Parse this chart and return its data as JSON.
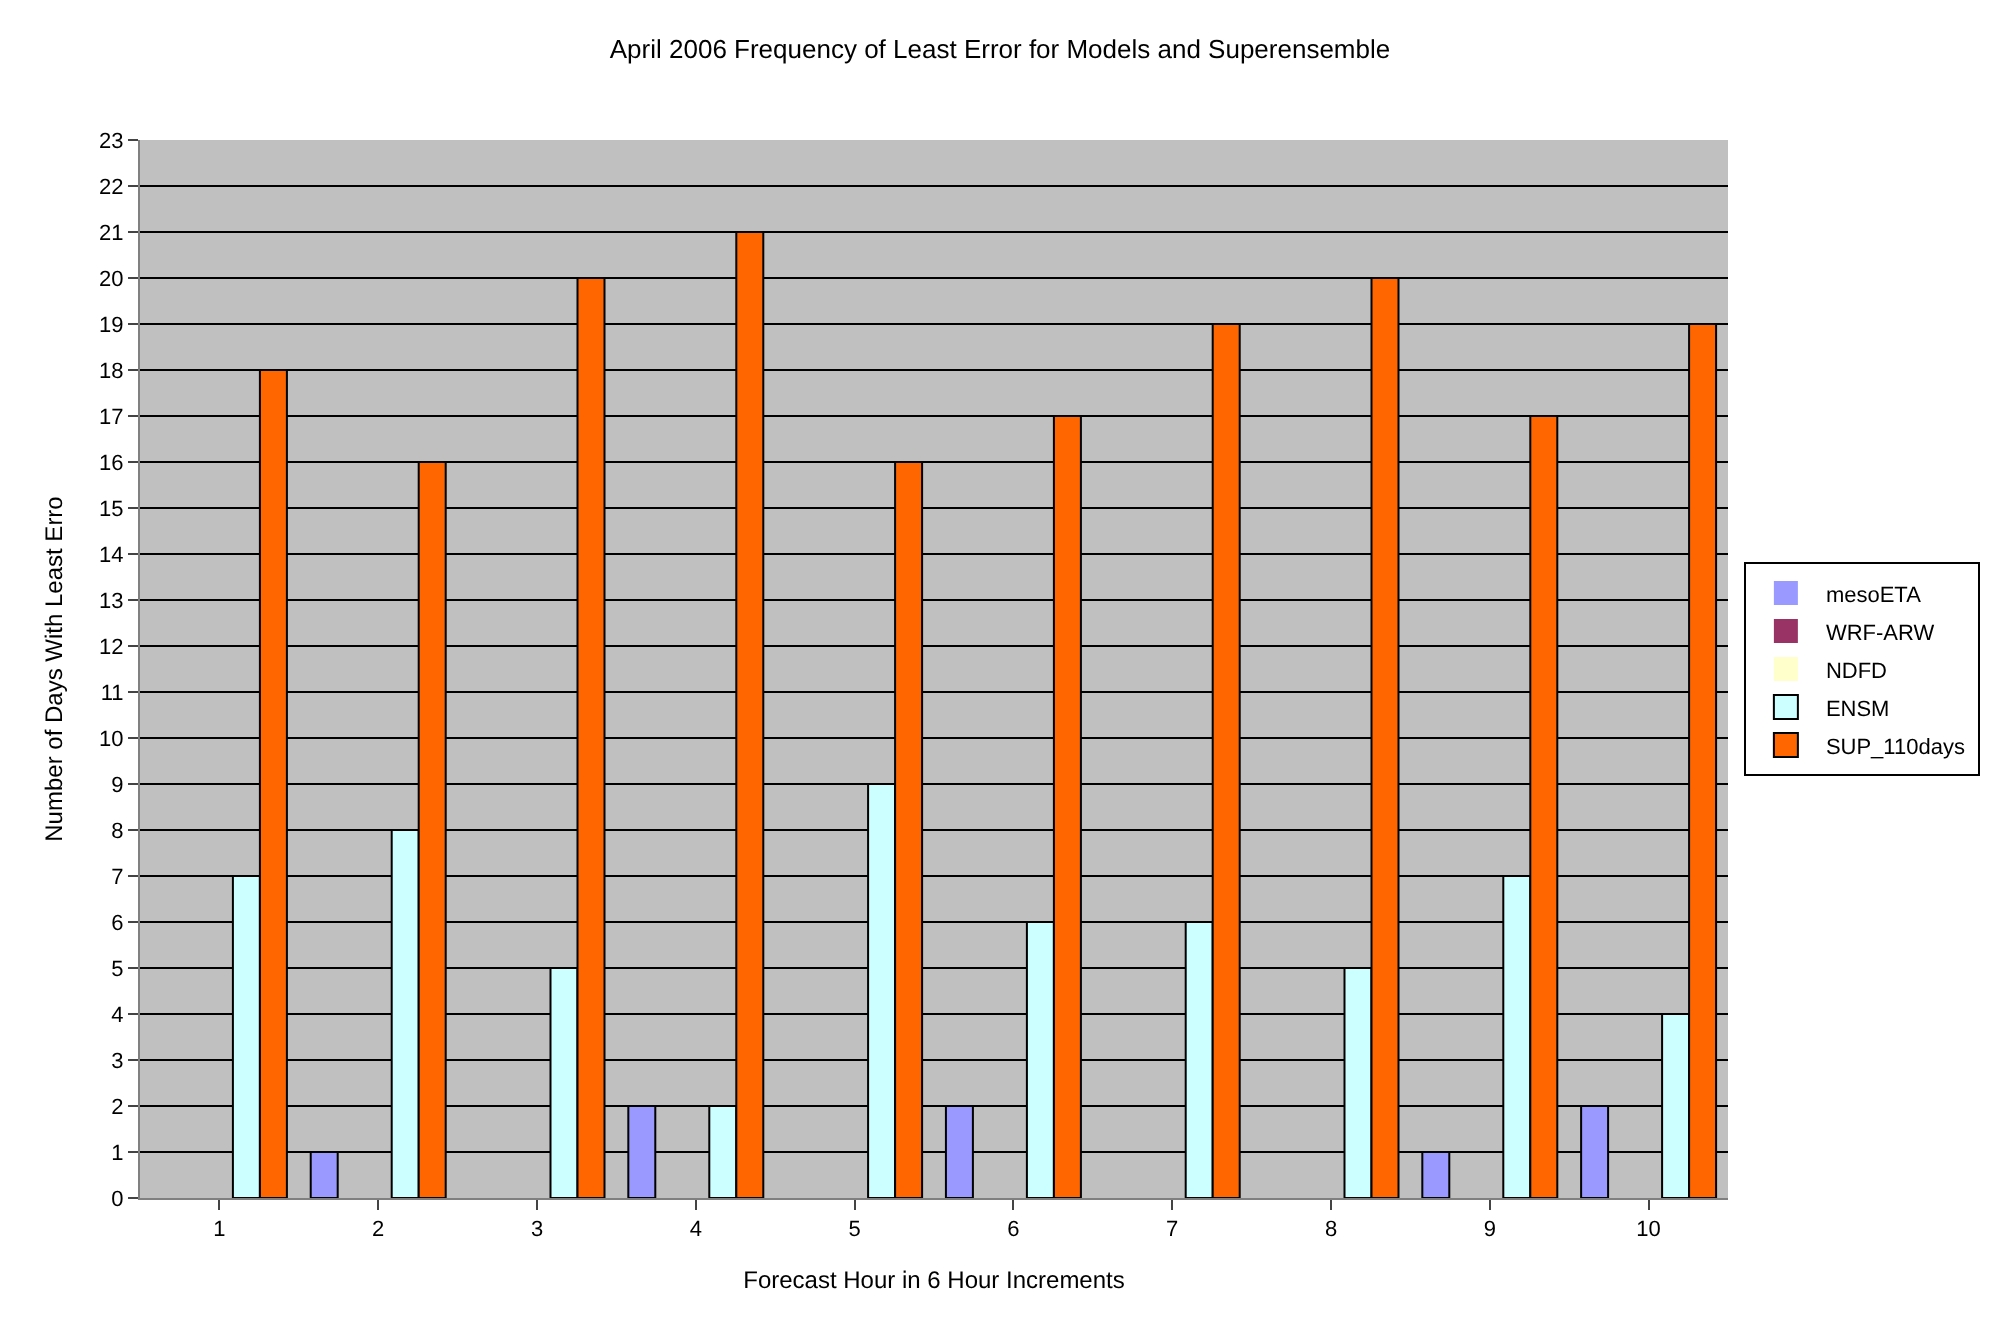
{
  "chart_data": {
    "type": "bar",
    "title": "April 2006 Frequency of Least Error for Models and Superensemble",
    "xlabel": "Forecast Hour in 6 Hour Increments",
    "ylabel": "Number of Days With Least Erro",
    "categories": [
      "1",
      "2",
      "3",
      "4",
      "5",
      "6",
      "7",
      "8",
      "9",
      "10"
    ],
    "series": [
      {
        "name": "mesoETA",
        "color": "#9999ff",
        "values": [
          0,
          1,
          0,
          2,
          0,
          2,
          0,
          0,
          1,
          2
        ]
      },
      {
        "name": "WRF-ARW",
        "color": "#993366",
        "values": [
          0,
          0,
          0,
          0,
          0,
          0,
          0,
          0,
          0,
          0
        ]
      },
      {
        "name": "NDFD",
        "color": "#ffffcc",
        "values": [
          0,
          0,
          0,
          0,
          0,
          0,
          0,
          0,
          0,
          0
        ]
      },
      {
        "name": "ENSM",
        "color": "#ccffff",
        "values": [
          7,
          8,
          5,
          2,
          9,
          6,
          6,
          5,
          7,
          4
        ]
      },
      {
        "name": "SUP_110days",
        "color": "#ff6600",
        "values": [
          18,
          16,
          20,
          21,
          16,
          17,
          19,
          20,
          17,
          19
        ]
      }
    ],
    "ylim": [
      0,
      23
    ],
    "yticks": [
      0,
      1,
      2,
      3,
      4,
      5,
      6,
      7,
      8,
      9,
      10,
      11,
      12,
      13,
      14,
      15,
      16,
      17,
      18,
      19,
      20,
      21,
      22,
      23
    ],
    "grid": "y",
    "legend": "right"
  }
}
